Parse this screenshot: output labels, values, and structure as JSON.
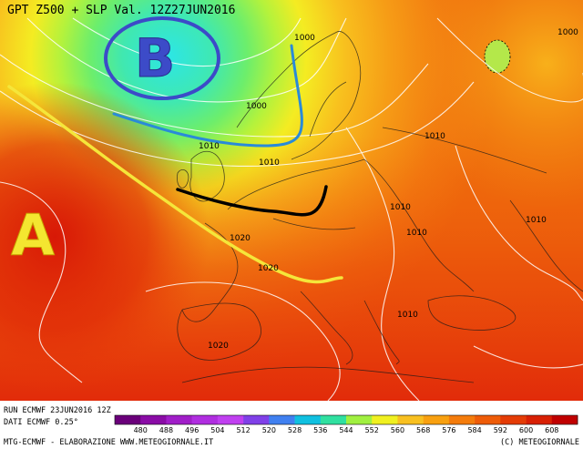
{
  "header": {
    "title": "GPT Z500 + SLP Val. 12Z27JUN2016"
  },
  "markers": {
    "high": "A",
    "low": "B"
  },
  "isobars": [
    "1000",
    "1000",
    "1000",
    "1010",
    "1010",
    "1010",
    "1010",
    "1010",
    "1010",
    "1020",
    "1020",
    "1020",
    "1010"
  ],
  "footer": {
    "run": "RUN ECMWF 23JUN2016 12Z",
    "dati": "DATI ECMWF 0.25°",
    "credit": "MTG-ECMWF  -  ELABORAZIONE WWW.METEOGIORNALE.IT",
    "copyright": "(C) METEOGIORNALE"
  },
  "legend": {
    "values": [
      "480",
      "488",
      "496",
      "504",
      "512",
      "520",
      "528",
      "536",
      "544",
      "552",
      "560",
      "568",
      "576",
      "584",
      "592",
      "600",
      "608"
    ],
    "colors": [
      "#6a007a",
      "#8a0ca6",
      "#a01ec8",
      "#b02ee0",
      "#c040f0",
      "#8040e8",
      "#4080f0",
      "#10c0e0",
      "#30e0a0",
      "#a0f040",
      "#f0f020",
      "#f8c020",
      "#f8a010",
      "#f47c0c",
      "#ee5c08",
      "#e43c06",
      "#d82004",
      "#c00000"
    ]
  },
  "colors": {
    "front_blue": "#2a8ad8",
    "front_yellow": "#f5e63a",
    "front_black": "#000000",
    "low_marker": "#3c4bc8",
    "high_marker": "#f4e630"
  }
}
